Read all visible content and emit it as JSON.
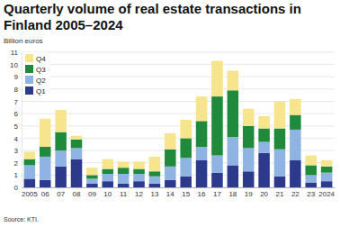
{
  "chart_data": {
    "type": "bar",
    "title": "Quarterly volume of real estate transactions in Finland 2005–2024",
    "y_label": "Billion euros",
    "source": "Source: KTI.",
    "stacked": true,
    "grid": true,
    "legend": "upper left",
    "categories": [
      "2005",
      "06",
      "07",
      "08",
      "09",
      "10",
      "11",
      "12",
      "13",
      "14",
      "15",
      "16",
      "17",
      "18",
      "19",
      "20",
      "21",
      "22",
      "23",
      "2024"
    ],
    "series": [
      {
        "name": "Q1",
        "color": "#2d3a8c",
        "values": [
          0.7,
          0.6,
          1.7,
          2.3,
          0.3,
          0.5,
          0.3,
          0.5,
          0.3,
          0.6,
          0.9,
          2.2,
          1.2,
          1.8,
          1.3,
          2.8,
          0.9,
          2.2,
          0.4,
          0.5
        ]
      },
      {
        "name": "Q2",
        "color": "#8fb3e2",
        "values": [
          1.1,
          1.9,
          1.3,
          0.9,
          0.4,
          0.6,
          0.8,
          0.6,
          0.6,
          1.1,
          1.5,
          1.1,
          1.4,
          2.3,
          1.9,
          0.9,
          2.2,
          2.5,
          0.6,
          0.7
        ]
      },
      {
        "name": "Q3",
        "color": "#1f8a3c",
        "values": [
          0.5,
          0.8,
          1.5,
          0.7,
          0.3,
          0.4,
          0.5,
          0.4,
          0.4,
          1.4,
          1.6,
          2.1,
          4.8,
          3.8,
          1.8,
          1.1,
          1.7,
          1.2,
          0.8,
          0.5
        ]
      },
      {
        "name": "Q4",
        "color": "#f6e58c",
        "values": [
          0.6,
          2.3,
          1.8,
          0.3,
          0.6,
          0.8,
          0.5,
          0.6,
          1.2,
          1.3,
          1.5,
          2.0,
          2.9,
          1.6,
          1.4,
          1.0,
          2.2,
          1.3,
          0.8,
          0.5
        ]
      }
    ],
    "ylim": [
      0,
      11
    ],
    "yticks": [
      0,
      1,
      2,
      3,
      4,
      5,
      6,
      7,
      8,
      9,
      10,
      11
    ]
  }
}
